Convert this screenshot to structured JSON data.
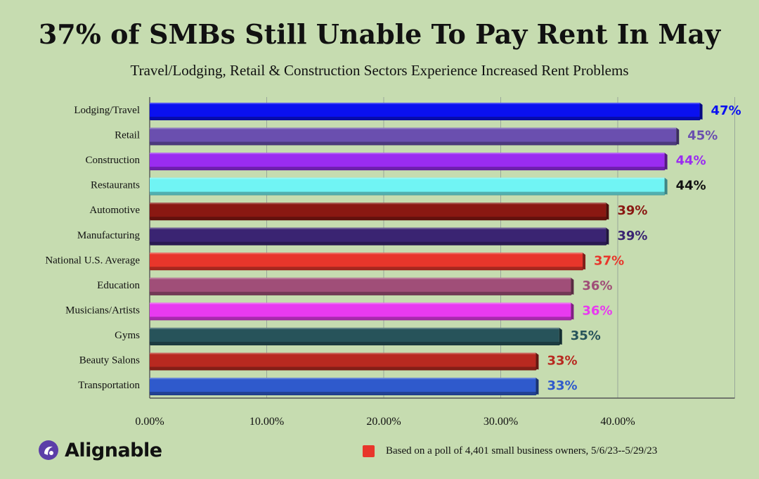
{
  "chart_data": {
    "type": "bar",
    "orientation": "horizontal",
    "title": "37% of SMBs Still Unable To Pay Rent In May",
    "subtitle": "Travel/Lodging, Retail & Construction Sectors Experience Increased Rent Problems",
    "categories": [
      "Lodging/Travel",
      "Retail",
      "Construction",
      "Restaurants",
      "Automotive",
      "Manufacturing",
      "National U.S. Average",
      "Education",
      "Musicians/Artists",
      "Gyms",
      "Beauty Salons",
      "Transportation"
    ],
    "values": [
      47,
      45,
      44,
      44,
      39,
      39,
      37,
      36,
      36,
      35,
      33,
      33
    ],
    "value_labels": [
      "47%",
      "45%",
      "44%",
      "44%",
      "39%",
      "39%",
      "37%",
      "36%",
      "36%",
      "35%",
      "33%",
      "33%"
    ],
    "bar_colors": [
      "#0a10f0",
      "#6a4faf",
      "#9a2cf0",
      "#70f4f4",
      "#8a1812",
      "#3a2472",
      "#e8362b",
      "#a04e78",
      "#e83af0",
      "#27535a",
      "#b82920",
      "#2f5acc"
    ],
    "label_colors": [
      "#0a10f0",
      "#6a4faf",
      "#9a2cf0",
      "#111111",
      "#8a1812",
      "#3a2472",
      "#e8362b",
      "#a04e78",
      "#e83af0",
      "#27535a",
      "#b82920",
      "#2f5acc"
    ],
    "x_ticks": [
      0,
      10,
      20,
      30,
      40
    ],
    "x_tick_labels": [
      "0.00%",
      "10.00%",
      "20.00%",
      "30.00%",
      "40.00%"
    ],
    "xlim": [
      0,
      50
    ],
    "grid": true,
    "legend": "bottom-right"
  },
  "footnote": "Based on a poll of 4,401 small business owners, 5/6/23--5/29/23",
  "footnote_color": "#e8362b",
  "brand": "Alignable",
  "brand_icon": "alignable-logo-icon"
}
